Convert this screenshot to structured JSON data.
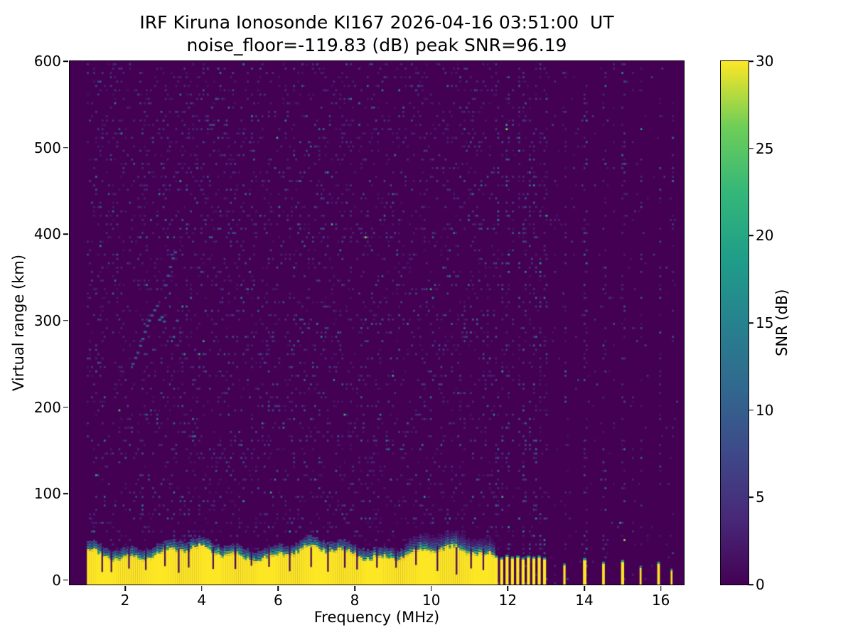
{
  "chart_data": {
    "type": "heatmap",
    "title": "IRF Kiruna Ionosonde KI167 2026-04-16 03:51:00  UT",
    "subtitle": "noise_floor=-119.83 (dB) peak SNR=96.19",
    "station": "KI167",
    "timestamp_ut": "2026-04-16 03:51:00",
    "noise_floor_db": -119.83,
    "peak_snr_db": 96.19,
    "xlabel": "Frequency (MHz)",
    "ylabel": "Virtual range (km)",
    "xlim": [
      0.55,
      16.6
    ],
    "ylim": [
      -5,
      600
    ],
    "x_ticks": [
      2,
      4,
      6,
      8,
      10,
      12,
      14,
      16
    ],
    "y_ticks": [
      0,
      100,
      200,
      300,
      400,
      500,
      600
    ],
    "data_freq_range": [
      1.0,
      16.45
    ],
    "colorbar": {
      "label": "SNR (dB)",
      "ticks": [
        0,
        5,
        10,
        15,
        20,
        25,
        30
      ],
      "min": 0,
      "max": 30
    },
    "colormap": {
      "name": "viridis",
      "stops": [
        [
          0,
          "#440154"
        ],
        [
          0.125,
          "#482878"
        ],
        [
          0.25,
          "#3e4989"
        ],
        [
          0.375,
          "#31688e"
        ],
        [
          0.5,
          "#26828e"
        ],
        [
          0.625,
          "#1f9e89"
        ],
        [
          0.75,
          "#35b779"
        ],
        [
          0.875,
          "#6ece58"
        ],
        [
          1,
          "#fde725"
        ]
      ]
    },
    "noise": {
      "seed": 20260416,
      "density_signal_band": 0.26,
      "density_quiet_band": 0.05,
      "stripe_density": 0.42,
      "mean_db": 3.0
    },
    "ground_band": {
      "freq_start": 1.0,
      "freq_end": 11.62,
      "top_km_base": 30,
      "top_km_variation": 8,
      "notch_freqs": [
        1.38,
        1.62,
        2.08,
        2.52,
        3.02,
        3.38,
        3.64,
        4.28,
        4.86,
        5.28,
        5.74,
        6.28,
        6.84,
        7.28,
        7.72,
        8.04,
        8.56,
        9.06,
        9.58,
        10.14,
        10.64,
        11.02,
        11.34
      ],
      "blocks": [
        {
          "f": 11.7,
          "w": 0.08,
          "h": 26
        },
        {
          "f": 11.84,
          "w": 0.08,
          "h": 24
        },
        {
          "f": 11.98,
          "w": 0.08,
          "h": 27
        },
        {
          "f": 12.12,
          "w": 0.08,
          "h": 25
        },
        {
          "f": 12.26,
          "w": 0.08,
          "h": 26
        },
        {
          "f": 12.4,
          "w": 0.08,
          "h": 24
        },
        {
          "f": 12.54,
          "w": 0.08,
          "h": 26
        },
        {
          "f": 12.68,
          "w": 0.08,
          "h": 25
        },
        {
          "f": 12.82,
          "w": 0.08,
          "h": 26
        },
        {
          "f": 12.96,
          "w": 0.08,
          "h": 24
        },
        {
          "f": 13.48,
          "w": 0.06,
          "h": 17
        },
        {
          "f": 14.01,
          "w": 0.09,
          "h": 23
        },
        {
          "f": 14.5,
          "w": 0.07,
          "h": 19
        },
        {
          "f": 15.0,
          "w": 0.08,
          "h": 21
        },
        {
          "f": 15.47,
          "w": 0.05,
          "h": 14
        },
        {
          "f": 15.94,
          "w": 0.07,
          "h": 19
        },
        {
          "f": 16.28,
          "w": 0.05,
          "h": 11
        }
      ]
    },
    "interference_stripes": [
      {
        "f": 11.7,
        "w": 0.08,
        "intensity": 1.0
      },
      {
        "f": 11.84,
        "w": 0.08,
        "intensity": 0.9
      },
      {
        "f": 11.98,
        "w": 0.08,
        "intensity": 1.0
      },
      {
        "f": 12.12,
        "w": 0.08,
        "intensity": 0.85
      },
      {
        "f": 12.26,
        "w": 0.08,
        "intensity": 1.0
      },
      {
        "f": 12.4,
        "w": 0.08,
        "intensity": 0.9
      },
      {
        "f": 12.54,
        "w": 0.08,
        "intensity": 1.0
      },
      {
        "f": 12.68,
        "w": 0.08,
        "intensity": 0.9
      },
      {
        "f": 12.82,
        "w": 0.08,
        "intensity": 1.0
      },
      {
        "f": 12.96,
        "w": 0.08,
        "intensity": 0.9
      },
      {
        "f": 13.2,
        "w": 0.06,
        "intensity": 0.5
      },
      {
        "f": 13.48,
        "w": 0.07,
        "intensity": 0.8
      },
      {
        "f": 13.76,
        "w": 0.05,
        "intensity": 0.4
      },
      {
        "f": 14.01,
        "w": 0.09,
        "intensity": 0.9
      },
      {
        "f": 14.28,
        "w": 0.05,
        "intensity": 0.4
      },
      {
        "f": 14.5,
        "w": 0.07,
        "intensity": 0.8
      },
      {
        "f": 14.77,
        "w": 0.05,
        "intensity": 0.4
      },
      {
        "f": 15.0,
        "w": 0.08,
        "intensity": 0.85
      },
      {
        "f": 15.25,
        "w": 0.05,
        "intensity": 0.4
      },
      {
        "f": 15.47,
        "w": 0.06,
        "intensity": 0.7
      },
      {
        "f": 15.71,
        "w": 0.05,
        "intensity": 0.4
      },
      {
        "f": 15.94,
        "w": 0.07,
        "intensity": 0.8
      },
      {
        "f": 16.28,
        "w": 0.06,
        "intensity": 0.6
      }
    ],
    "echo_trace": [
      {
        "f": 2.2,
        "r": 250,
        "snr": 8
      },
      {
        "f": 2.27,
        "r": 257,
        "snr": 9
      },
      {
        "f": 2.33,
        "r": 263,
        "snr": 8
      },
      {
        "f": 2.4,
        "r": 271,
        "snr": 10
      },
      {
        "f": 2.46,
        "r": 279,
        "snr": 9
      },
      {
        "f": 2.52,
        "r": 287,
        "snr": 10
      },
      {
        "f": 2.58,
        "r": 294,
        "snr": 9
      },
      {
        "f": 2.63,
        "r": 300,
        "snr": 11
      },
      {
        "f": 2.7,
        "r": 306,
        "snr": 9
      },
      {
        "f": 2.77,
        "r": 312,
        "snr": 10
      },
      {
        "f": 2.84,
        "r": 317,
        "snr": 8
      },
      {
        "f": 2.9,
        "r": 301,
        "snr": 12
      },
      {
        "f": 2.96,
        "r": 304,
        "snr": 11
      },
      {
        "f": 3.02,
        "r": 299,
        "snr": 10
      },
      {
        "f": 3.06,
        "r": 341,
        "snr": 8
      },
      {
        "f": 3.12,
        "r": 352,
        "snr": 9
      },
      {
        "f": 3.18,
        "r": 362,
        "snr": 8
      },
      {
        "f": 3.25,
        "r": 372,
        "snr": 9
      },
      {
        "f": 3.31,
        "r": 379,
        "snr": 8
      },
      {
        "f": 3.36,
        "r": 300,
        "snr": 9
      }
    ]
  }
}
